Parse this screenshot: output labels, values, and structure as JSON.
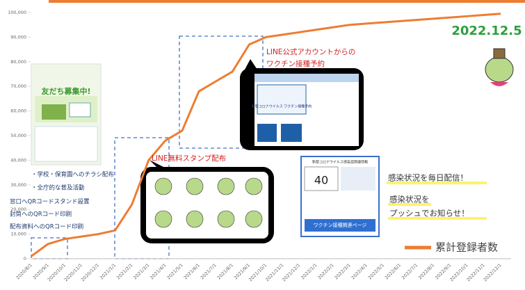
{
  "chart_data": {
    "type": "line",
    "categories": [
      "2020/8/1",
      "2020/9/1",
      "2020/10/1",
      "2020/11/1",
      "2020/12/1",
      "2021/1/1",
      "2021/2/1",
      "2021/3/1",
      "2021/4/1",
      "2021/5/1",
      "2021/6/1",
      "2021/7/1",
      "2021/8/1",
      "2021/9/1",
      "2021/10/1",
      "2021/11/1",
      "2021/12/1",
      "2022/1/1",
      "2022/2/1",
      "2022/3/1",
      "2022/4/1",
      "2022/5/1",
      "2022/6/1",
      "2022/7/1",
      "2022/8/1",
      "2022/9/1",
      "2022/10/1",
      "2022/11/1",
      "2022/12/1"
    ],
    "series": [
      {
        "name": "累計登録者数",
        "color": "#ed7d31",
        "values": [
          1000,
          6000,
          8000,
          9000,
          10000,
          11500,
          22000,
          40000,
          48000,
          52000,
          68000,
          72000,
          76000,
          87000,
          90000,
          91000,
          92000,
          93000,
          94000,
          95000,
          95500,
          96000,
          96500,
          97000,
          97500,
          98000,
          98500,
          99000,
          99500
        ]
      }
    ],
    "ylim": [
      0,
      100000
    ],
    "yticks": [
      0,
      {
        "value": 10000,
        "label": "10,000"
      },
      {
        "value": 20000,
        "label": "20,000"
      },
      {
        "value": 30000,
        "label": "30,000"
      },
      {
        "value": 40000,
        "label": "40,000"
      },
      {
        "value": 50000,
        "label": "50,000"
      },
      {
        "value": 60000,
        "label": "60,000"
      },
      {
        "value": 70000,
        "label": "70,000"
      },
      {
        "value": 80000,
        "label": "80,000"
      },
      {
        "value": 90000,
        "label": "90,000"
      },
      {
        "value": 100000,
        "label": "100,000"
      }
    ],
    "grid": false,
    "legend": "bottom-right",
    "annotations": [
      "2022.12.5",
      "LINE公式アカウントからの",
      "ワクチン接種予約",
      "LINE無料スタンプ配布",
      "・学校・保育園へのチラシ配布",
      "・全庁的な普及活動",
      "窓口へQRコードスタンド設置",
      "封筒へのQRコード印刷",
      "配布資料へのQRコード印刷",
      "感染状況を毎日配信！",
      "感染状況を",
      "プッシュでお知らせ！"
    ],
    "images": {
      "flyer": "友だち募集中!",
      "app": "新型コロナウイルス ワクチン接種予約",
      "card_title": "新型コロナウイルス感染症関連情報",
      "card_number": "40",
      "card_button": "ワクチン接種関連ページ"
    }
  }
}
